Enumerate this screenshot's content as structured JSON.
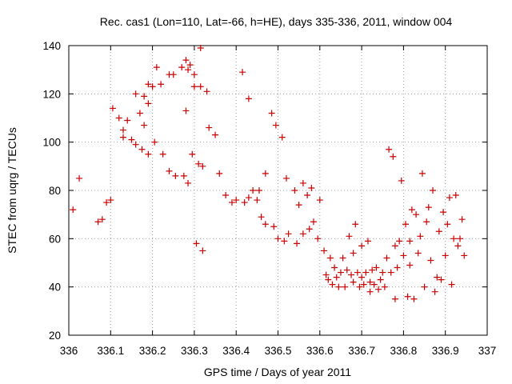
{
  "chart_data": {
    "type": "scatter",
    "title": "Rec. cas1 (Lon=110, Lat=-66, h=HE), days 335-336, 2011, window 004",
    "xlabel": "GPS time / Days of year 2011",
    "ylabel": "STEC from uqrg / TECUs",
    "xlim": [
      336,
      337
    ],
    "ylim": [
      20,
      140
    ],
    "xticks": [
      "336",
      "336.1",
      "336.2",
      "336.3",
      "336.4",
      "336.5",
      "336.6",
      "336.7",
      "336.8",
      "336.9",
      "337"
    ],
    "yticks": [
      "20",
      "40",
      "60",
      "80",
      "100",
      "120",
      "140"
    ],
    "grid": true,
    "marker": "plus",
    "color": "#cc0000",
    "points": [
      [
        336.01,
        72
      ],
      [
        336.025,
        85
      ],
      [
        336.07,
        67
      ],
      [
        336.08,
        68
      ],
      [
        336.09,
        75
      ],
      [
        336.1,
        76
      ],
      [
        336.105,
        114
      ],
      [
        336.12,
        110
      ],
      [
        336.13,
        105
      ],
      [
        336.13,
        102
      ],
      [
        336.14,
        109
      ],
      [
        336.15,
        101
      ],
      [
        336.16,
        120
      ],
      [
        336.16,
        99
      ],
      [
        336.17,
        112
      ],
      [
        336.175,
        97
      ],
      [
        336.18,
        119
      ],
      [
        336.18,
        107
      ],
      [
        336.19,
        124
      ],
      [
        336.19,
        116
      ],
      [
        336.19,
        95
      ],
      [
        336.2,
        123
      ],
      [
        336.205,
        100
      ],
      [
        336.21,
        131
      ],
      [
        336.22,
        124
      ],
      [
        336.225,
        95
      ],
      [
        336.24,
        128
      ],
      [
        336.24,
        88
      ],
      [
        336.25,
        128
      ],
      [
        336.255,
        86
      ],
      [
        336.27,
        131
      ],
      [
        336.275,
        86
      ],
      [
        336.28,
        134
      ],
      [
        336.285,
        130
      ],
      [
        336.28,
        113
      ],
      [
        336.285,
        83
      ],
      [
        336.29,
        132
      ],
      [
        336.295,
        95
      ],
      [
        336.3,
        123
      ],
      [
        336.3,
        128
      ],
      [
        336.305,
        58
      ],
      [
        336.31,
        91
      ],
      [
        336.315,
        139
      ],
      [
        336.315,
        123
      ],
      [
        336.32,
        90
      ],
      [
        336.32,
        55
      ],
      [
        336.33,
        121
      ],
      [
        336.335,
        106
      ],
      [
        336.35,
        103
      ],
      [
        336.36,
        87
      ],
      [
        336.375,
        78
      ],
      [
        336.39,
        75
      ],
      [
        336.4,
        76
      ],
      [
        336.415,
        129
      ],
      [
        336.42,
        75
      ],
      [
        336.43,
        118
      ],
      [
        336.43,
        77
      ],
      [
        336.44,
        80
      ],
      [
        336.45,
        76
      ],
      [
        336.455,
        80
      ],
      [
        336.46,
        69
      ],
      [
        336.47,
        87
      ],
      [
        336.47,
        66
      ],
      [
        336.485,
        112
      ],
      [
        336.49,
        65
      ],
      [
        336.495,
        107
      ],
      [
        336.5,
        60
      ],
      [
        336.51,
        102
      ],
      [
        336.515,
        59
      ],
      [
        336.52,
        85
      ],
      [
        336.525,
        62
      ],
      [
        336.54,
        80
      ],
      [
        336.545,
        58
      ],
      [
        336.55,
        74
      ],
      [
        336.56,
        62
      ],
      [
        336.56,
        83
      ],
      [
        336.57,
        78
      ],
      [
        336.575,
        64
      ],
      [
        336.58,
        81
      ],
      [
        336.585,
        67
      ],
      [
        336.595,
        60
      ],
      [
        336.6,
        76
      ],
      [
        336.61,
        55
      ],
      [
        336.615,
        45
      ],
      [
        336.62,
        43
      ],
      [
        336.625,
        52
      ],
      [
        336.63,
        41
      ],
      [
        336.635,
        48
      ],
      [
        336.64,
        44
      ],
      [
        336.645,
        40
      ],
      [
        336.65,
        46
      ],
      [
        336.655,
        52
      ],
      [
        336.66,
        40
      ],
      [
        336.665,
        47
      ],
      [
        336.67,
        61
      ],
      [
        336.675,
        45
      ],
      [
        336.68,
        54
      ],
      [
        336.68,
        42
      ],
      [
        336.685,
        66
      ],
      [
        336.69,
        46
      ],
      [
        336.695,
        40
      ],
      [
        336.7,
        57
      ],
      [
        336.7,
        44
      ],
      [
        336.705,
        41
      ],
      [
        336.71,
        46
      ],
      [
        336.715,
        59
      ],
      [
        336.72,
        42
      ],
      [
        336.72,
        38
      ],
      [
        336.725,
        47
      ],
      [
        336.73,
        41
      ],
      [
        336.735,
        48
      ],
      [
        336.74,
        39
      ],
      [
        336.745,
        43
      ],
      [
        336.75,
        46
      ],
      [
        336.755,
        40
      ],
      [
        336.76,
        52
      ],
      [
        336.765,
        97
      ],
      [
        336.77,
        46
      ],
      [
        336.775,
        94
      ],
      [
        336.78,
        57
      ],
      [
        336.78,
        35
      ],
      [
        336.785,
        48
      ],
      [
        336.79,
        59
      ],
      [
        336.795,
        84
      ],
      [
        336.8,
        53
      ],
      [
        336.805,
        66
      ],
      [
        336.81,
        36
      ],
      [
        336.815,
        49
      ],
      [
        336.815,
        59
      ],
      [
        336.82,
        72
      ],
      [
        336.825,
        35
      ],
      [
        336.83,
        70
      ],
      [
        336.835,
        54
      ],
      [
        336.84,
        61
      ],
      [
        336.845,
        87
      ],
      [
        336.85,
        40
      ],
      [
        336.855,
        67
      ],
      [
        336.86,
        73
      ],
      [
        336.865,
        51
      ],
      [
        336.87,
        80
      ],
      [
        336.875,
        38
      ],
      [
        336.88,
        44
      ],
      [
        336.885,
        63
      ],
      [
        336.89,
        43
      ],
      [
        336.895,
        71
      ],
      [
        336.9,
        53
      ],
      [
        336.905,
        66
      ],
      [
        336.91,
        77
      ],
      [
        336.915,
        41
      ],
      [
        336.92,
        60
      ],
      [
        336.925,
        78
      ],
      [
        336.93,
        57
      ],
      [
        336.935,
        60
      ],
      [
        336.94,
        68
      ],
      [
        336.945,
        53
      ]
    ]
  }
}
